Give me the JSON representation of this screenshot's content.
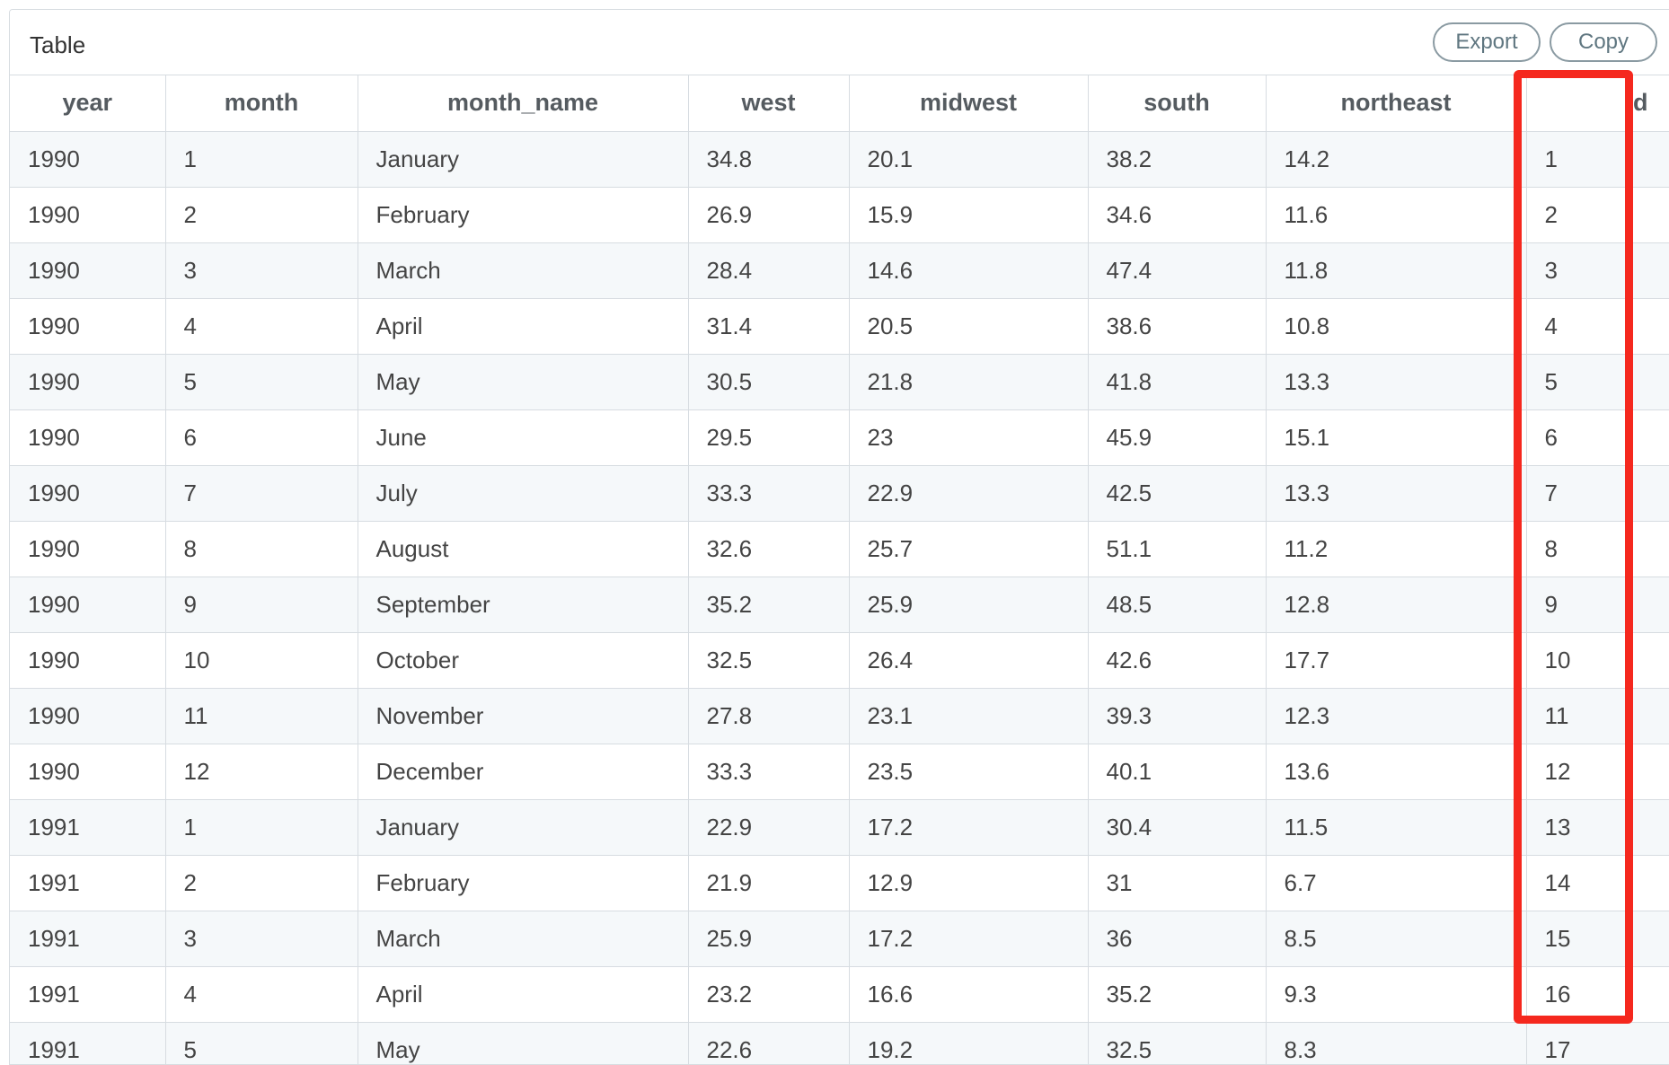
{
  "panel": {
    "title": "Table",
    "export_label": "Export",
    "copy_label": "Copy"
  },
  "highlight": {
    "color": "#f5281e",
    "target_column": "id"
  },
  "table": {
    "columns": [
      "year",
      "month",
      "month_name",
      "west",
      "midwest",
      "south",
      "northeast",
      "id"
    ],
    "rows": [
      [
        "1990",
        "1",
        "January",
        "34.8",
        "20.1",
        "38.2",
        "14.2",
        "1"
      ],
      [
        "1990",
        "2",
        "February",
        "26.9",
        "15.9",
        "34.6",
        "11.6",
        "2"
      ],
      [
        "1990",
        "3",
        "March",
        "28.4",
        "14.6",
        "47.4",
        "11.8",
        "3"
      ],
      [
        "1990",
        "4",
        "April",
        "31.4",
        "20.5",
        "38.6",
        "10.8",
        "4"
      ],
      [
        "1990",
        "5",
        "May",
        "30.5",
        "21.8",
        "41.8",
        "13.3",
        "5"
      ],
      [
        "1990",
        "6",
        "June",
        "29.5",
        "23",
        "45.9",
        "15.1",
        "6"
      ],
      [
        "1990",
        "7",
        "July",
        "33.3",
        "22.9",
        "42.5",
        "13.3",
        "7"
      ],
      [
        "1990",
        "8",
        "August",
        "32.6",
        "25.7",
        "51.1",
        "11.2",
        "8"
      ],
      [
        "1990",
        "9",
        "September",
        "35.2",
        "25.9",
        "48.5",
        "12.8",
        "9"
      ],
      [
        "1990",
        "10",
        "October",
        "32.5",
        "26.4",
        "42.6",
        "17.7",
        "10"
      ],
      [
        "1990",
        "11",
        "November",
        "27.8",
        "23.1",
        "39.3",
        "12.3",
        "11"
      ],
      [
        "1990",
        "12",
        "December",
        "33.3",
        "23.5",
        "40.1",
        "13.6",
        "12"
      ],
      [
        "1991",
        "1",
        "January",
        "22.9",
        "17.2",
        "30.4",
        "11.5",
        "13"
      ],
      [
        "1991",
        "2",
        "February",
        "21.9",
        "12.9",
        "31",
        "6.7",
        "14"
      ],
      [
        "1991",
        "3",
        "March",
        "25.9",
        "17.2",
        "36",
        "8.5",
        "15"
      ],
      [
        "1991",
        "4",
        "April",
        "23.2",
        "16.6",
        "35.2",
        "9.3",
        "16"
      ],
      [
        "1991",
        "5",
        "May",
        "22.6",
        "19.2",
        "32.5",
        "8.3",
        "17"
      ]
    ]
  }
}
